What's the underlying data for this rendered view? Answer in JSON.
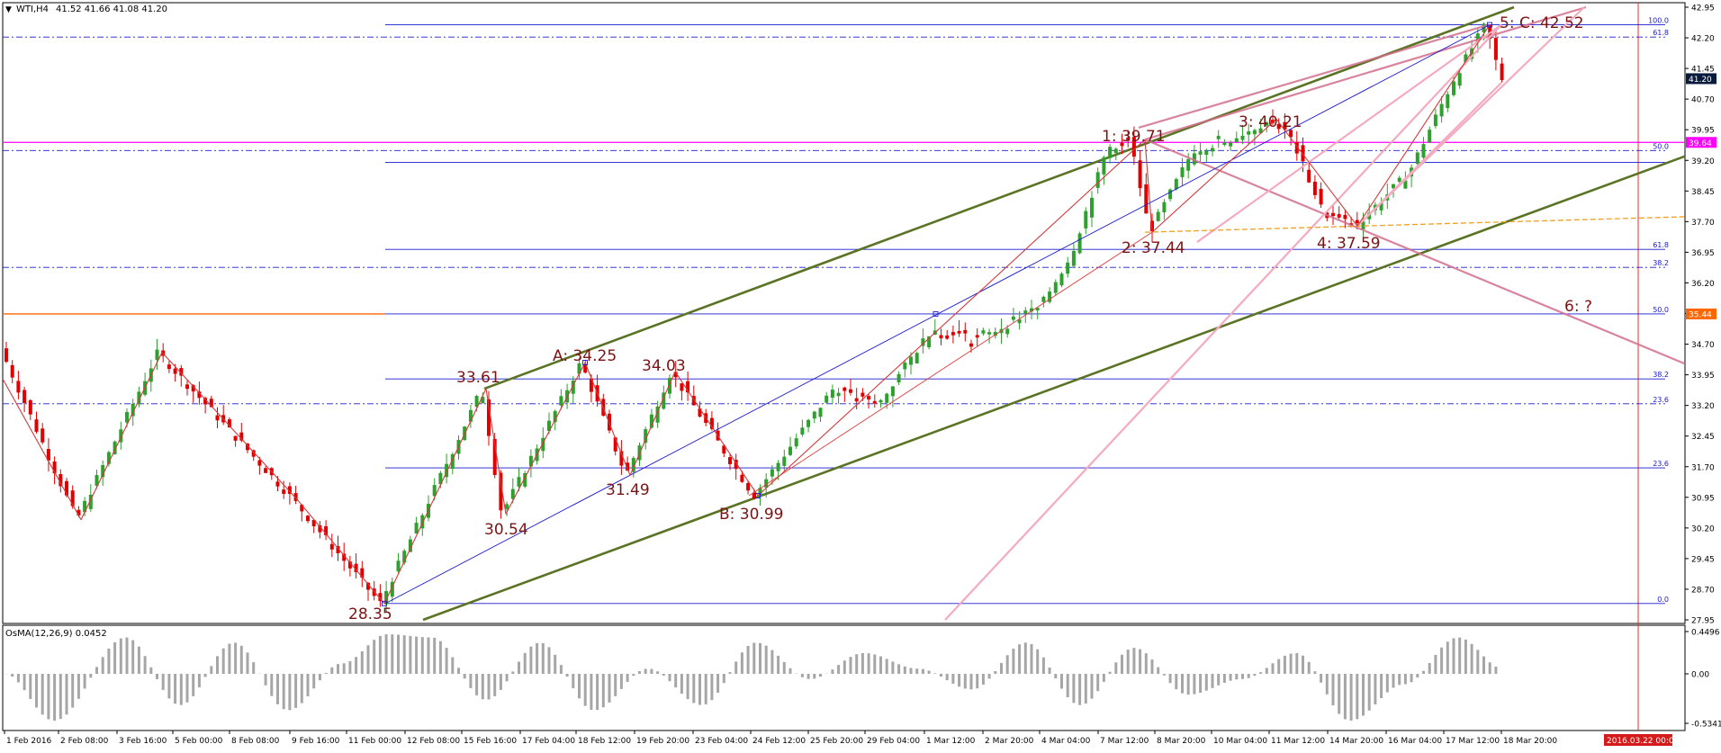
{
  "header": {
    "symbol_label": "WTI,H4",
    "ohlc": "41.52 41.66 41.08 41.20"
  },
  "indicator": {
    "label": "OsMA(12,26,9) 0.0452",
    "ticks": [
      "0.4496",
      "0.00",
      "-0.5341"
    ]
  },
  "price_axis": {
    "ticks": [
      "42.95",
      "42.20",
      "41.45",
      "40.70",
      "39.95",
      "39.20",
      "38.45",
      "37.70",
      "36.95",
      "36.20",
      "35.45",
      "34.70",
      "33.95",
      "33.20",
      "32.45",
      "31.70",
      "30.95",
      "30.20",
      "29.45",
      "28.70",
      "27.95"
    ],
    "current_price": "41.20",
    "fib_tag_upper": "39.64",
    "fib_tag_lower": "35.44"
  },
  "time_axis": {
    "labels": [
      "1 Feb 2016",
      "2 Feb 08:00",
      "3 Feb 16:00",
      "5 Feb 00:00",
      "8 Feb 08:00",
      "9 Feb 16:00",
      "11 Feb 00:00",
      "12 Feb 08:00",
      "15 Feb 16:00",
      "17 Feb 04:00",
      "18 Feb 12:00",
      "19 Feb 20:00",
      "23 Feb 04:00",
      "24 Feb 12:00",
      "25 Feb 20:00",
      "29 Feb 04:00",
      "1 Mar 12:00",
      "2 Mar 20:00",
      "4 Mar 04:00",
      "7 Mar 12:00",
      "8 Mar 20:00",
      "10 Mar 04:00",
      "11 Mar 12:00",
      "14 Mar 20:00",
      "16 Mar 04:00",
      "17 Mar 12:00",
      "18 Mar 20:00"
    ],
    "cursor_date": "2016.03.22 00:00"
  },
  "fib_levels_left": [
    "100.0",
    "61.8",
    "50.0"
  ],
  "fib_levels_right": [
    "61.8",
    "38.2",
    "50.0",
    "38.2",
    "23.6",
    "23.6",
    "0.0"
  ],
  "wave_labels": [
    "28.35",
    "33.61",
    "30.54",
    "A: 34.25",
    "31.49",
    "34.03",
    "B: 30.99",
    "1: 39.71",
    "2: 37.44",
    "3: 40.21",
    "4: 37.59",
    "5: C: 42.52",
    "6: ?"
  ],
  "chart_data": {
    "type": "candlestick",
    "symbol": "WTI",
    "timeframe": "H4",
    "last_bar": {
      "open": 41.52,
      "high": 41.66,
      "low": 41.08,
      "close": 41.2
    },
    "ylim": [
      27.95,
      42.95
    ],
    "y_ticks": [
      42.95,
      42.2,
      41.45,
      40.7,
      39.95,
      39.2,
      38.45,
      37.7,
      36.95,
      36.2,
      35.45,
      34.7,
      33.95,
      33.2,
      32.45,
      31.7,
      30.95,
      30.2,
      29.45,
      28.7,
      27.95
    ],
    "swing_points": [
      {
        "label": "28.35",
        "price": 28.35
      },
      {
        "label": "33.61",
        "price": 33.61
      },
      {
        "label": "30.54",
        "price": 30.54
      },
      {
        "label": "A: 34.25",
        "price": 34.25
      },
      {
        "label": "31.49",
        "price": 31.49
      },
      {
        "label": "34.03",
        "price": 34.03
      },
      {
        "label": "B: 30.99",
        "price": 30.99
      },
      {
        "label": "1: 39.71",
        "price": 39.71
      },
      {
        "label": "2: 37.44",
        "price": 37.44
      },
      {
        "label": "3: 40.21",
        "price": 40.21
      },
      {
        "label": "4: 37.59",
        "price": 37.59
      },
      {
        "label": "5: C: 42.52",
        "price": 42.52
      }
    ],
    "horizontal_levels": [
      39.64,
      35.44
    ],
    "indicator": {
      "name": "OsMA(12,26,9)",
      "last": 0.0452,
      "ylim": [
        -0.5341,
        0.4496
      ]
    },
    "colors": {
      "bull": "#2ea02e",
      "bear": "#e00000",
      "fib": "#1a1ad0",
      "channel": "#5b7324",
      "fan": "#f4aabf",
      "wave": "#d26e8c",
      "label": "#7a1414",
      "magenta": "#ff00ff",
      "orange": "#ff6600",
      "vline": "#e03030"
    }
  }
}
